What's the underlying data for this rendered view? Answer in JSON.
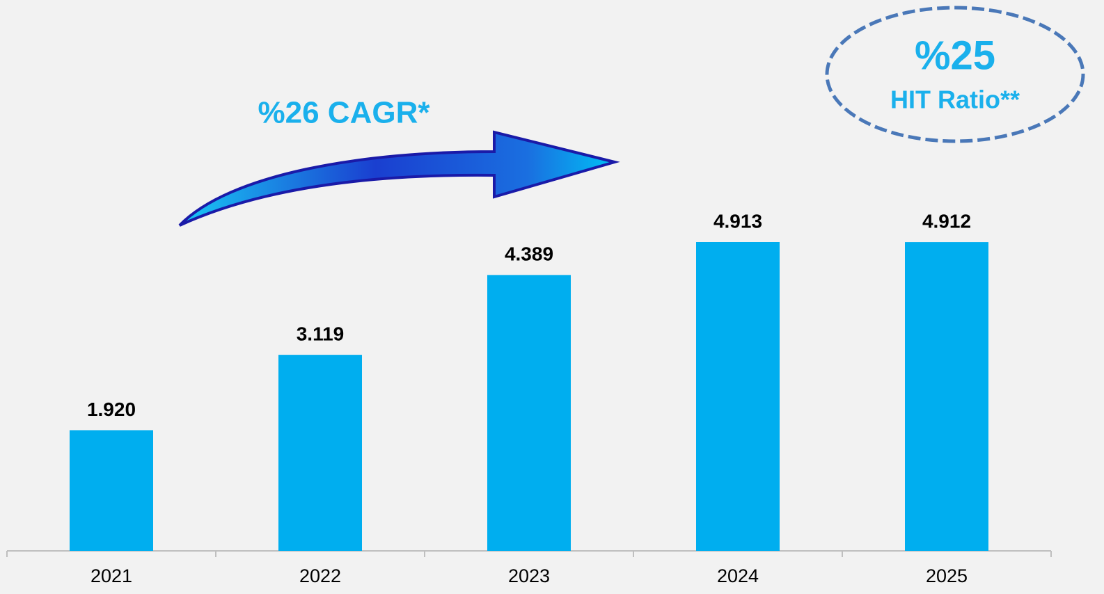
{
  "chart_data": {
    "type": "bar",
    "categories": [
      "2021",
      "2022",
      "2023",
      "2024",
      "2025"
    ],
    "values": [
      1920,
      3119,
      4389,
      4913,
      4912
    ],
    "value_labels": [
      "1.920",
      "3.119",
      "4.389",
      "4.913",
      "4.912"
    ],
    "color": "#00aeef",
    "annotations": {
      "cagr": "%26 CAGR*",
      "hit_value": "%25",
      "hit_label": "HIT Ratio**"
    }
  }
}
